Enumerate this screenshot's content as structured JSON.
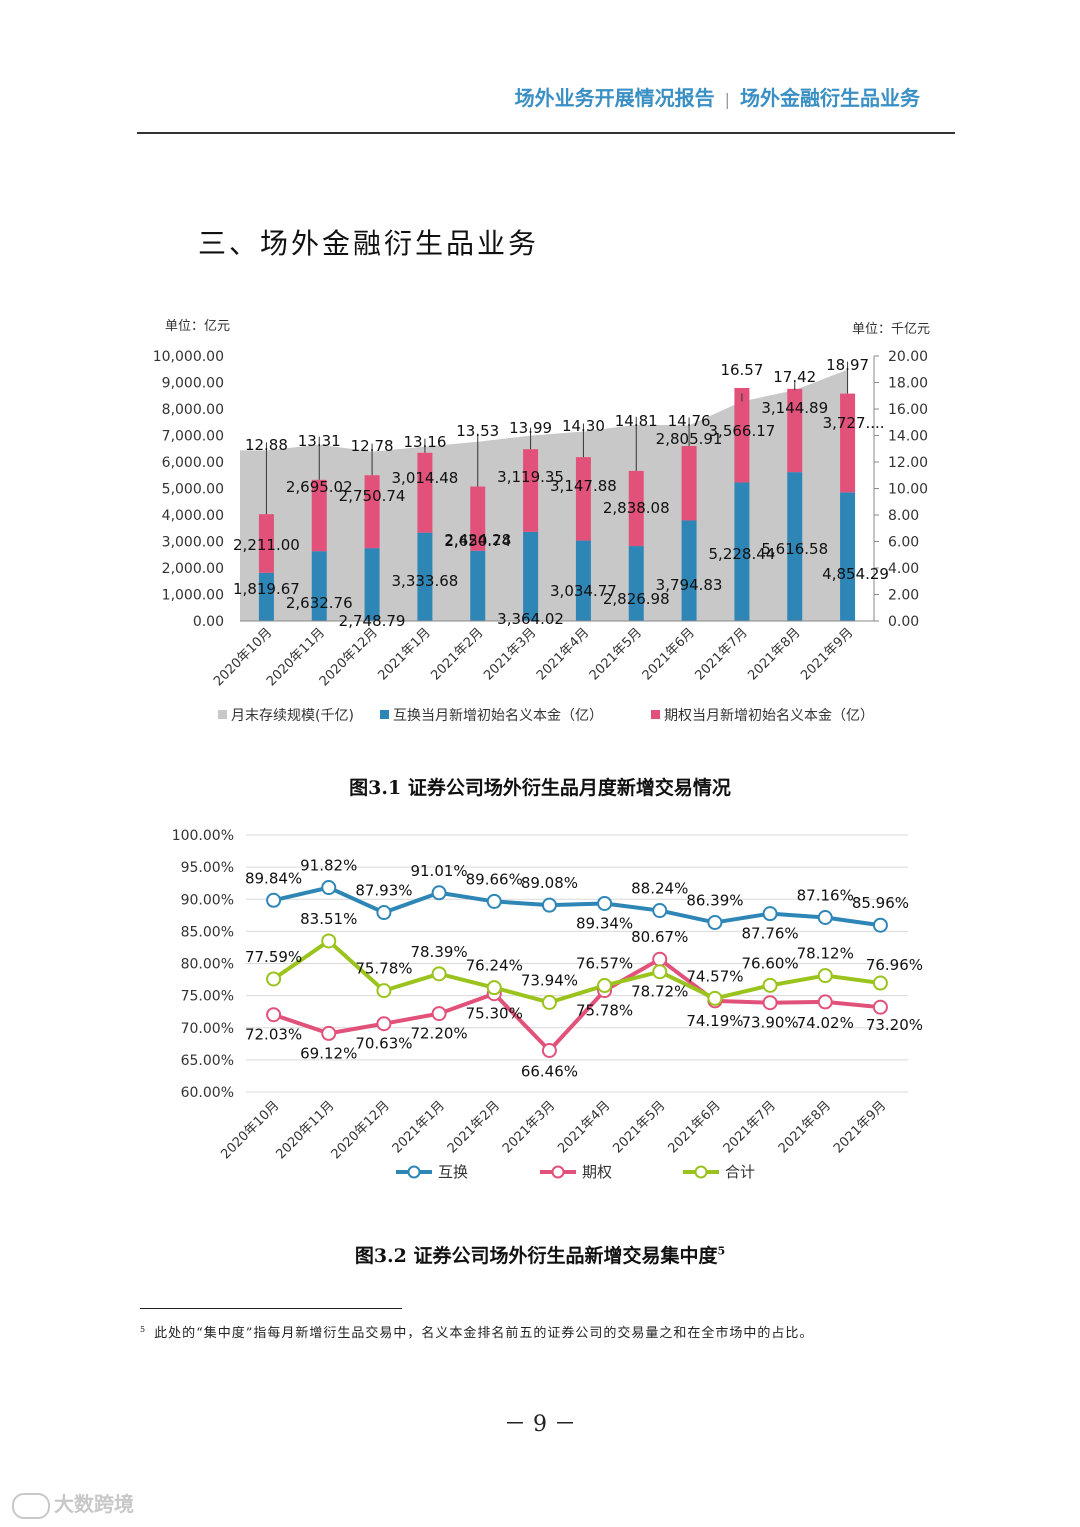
{
  "header": {
    "left": "场外业务开展情况报告",
    "separator": "|",
    "right": "场外金融衍生品业务"
  },
  "section_title": "三、场外金融衍生品业务",
  "figure1": {
    "caption": "图3.1 证券公司场外衍生品月度新增交易情况",
    "unit_left": "单位：亿元",
    "unit_right": "单位：千亿元",
    "left_ticks": [
      "0.00",
      "1,000.00",
      "2,000.00",
      "3,000.00",
      "4,000.00",
      "5,000.00",
      "6,000.00",
      "7,000.00",
      "8,000.00",
      "9,000.00",
      "10,000.00"
    ],
    "right_ticks": [
      "0.00",
      "2.00",
      "4.00",
      "6.00",
      "8.00",
      "10.00",
      "12.00",
      "14.00",
      "16.00",
      "18.00",
      "20.00"
    ],
    "legend": [
      "月末存续规模(千亿)",
      "互换当月新增初始名义本金（亿）",
      "期权当月新增初始名义本金（亿）"
    ],
    "colors": {
      "area": "#c8c8c8",
      "swap": "#2e86b6",
      "option": "#e2517a"
    }
  },
  "figure2": {
    "caption": "图3.2 证券公司场外衍生品新增交易集中度",
    "caption_sup": "5",
    "ticks": [
      "60.00%",
      "65.00%",
      "70.00%",
      "75.00%",
      "80.00%",
      "85.00%",
      "90.00%",
      "95.00%",
      "100.00%"
    ],
    "colors": {
      "swap": "#2e86b6",
      "option": "#e2517a",
      "total": "#9bc31d"
    }
  },
  "chart_data": [
    {
      "type": "bar",
      "categories": [
        "2020年10月",
        "2020年11月",
        "2020年12月",
        "2021年1月",
        "2021年2月",
        "2021年3月",
        "2021年4月",
        "2021年5月",
        "2021年6月",
        "2021年7月",
        "2021年8月",
        "2021年9月"
      ],
      "series": [
        {
          "name": "互换当月新增初始名义本金（亿）",
          "axis": "left",
          "values": [
            1819.67,
            2632.76,
            2748.79,
            3333.68,
            2650.74,
            3364.02,
            3034.77,
            2826.98,
            3794.83,
            5228.44,
            5616.58,
            4854.29
          ],
          "labels": [
            "1,819.67",
            "2,632.76",
            "2,748.79",
            "3,333.68",
            "2,650.74",
            "3,364.02",
            "3,034.77",
            "2,826.98",
            "3,794.83",
            "5,228.44",
            "5,616.58",
            "4,854.29"
          ]
        },
        {
          "name": "期权当月新增初始名义本金（亿）",
          "axis": "left",
          "values": [
            2211.0,
            2695.02,
            2750.74,
            3014.48,
            2424.28,
            3119.35,
            3147.88,
            2838.08,
            2805.91,
            3566.17,
            3144.89,
            3727
          ],
          "labels": [
            "2,211.00",
            "2,695.02",
            "2,750.74",
            "3,014.48",
            "2,424.28",
            "3,119.35",
            "3,147.88",
            "2,838.08",
            "2,805.91",
            "3,566.17",
            "3,144.89",
            "3,727...."
          ]
        },
        {
          "name": "月末存续规模(千亿)",
          "axis": "right",
          "type": "area",
          "values": [
            12.88,
            13.31,
            12.78,
            13.16,
            13.53,
            13.99,
            14.3,
            14.81,
            14.76,
            16.57,
            17.42,
            18.97
          ],
          "labels": [
            "12.88",
            "13.31",
            "12.78",
            "13.16",
            "13.53",
            "13.99",
            "14.30",
            "14.81",
            "14.76",
            "16.57",
            "17.42",
            "18.97"
          ]
        }
      ],
      "ylim": [
        0,
        10000
      ],
      "ylim_right": [
        0,
        20
      ]
    },
    {
      "type": "line",
      "categories": [
        "2020年10月",
        "2020年11月",
        "2020年12月",
        "2021年1月",
        "2021年2月",
        "2021年3月",
        "2021年4月",
        "2021年5月",
        "2021年6月",
        "2021年7月",
        "2021年8月",
        "2021年9月"
      ],
      "series": [
        {
          "name": "互换",
          "values": [
            89.84,
            91.82,
            87.93,
            91.01,
            89.66,
            89.08,
            89.34,
            88.24,
            86.39,
            87.76,
            87.16,
            85.96
          ],
          "labels": [
            "89.84%",
            "91.82%",
            "87.93%",
            "91.01%",
            "89.66%",
            "89.08%",
            "89.34%",
            "88.24%",
            "86.39%",
            "87.76%",
            "87.16%",
            "85.96%"
          ]
        },
        {
          "name": "期权",
          "values": [
            72.03,
            69.12,
            70.63,
            72.2,
            75.3,
            66.46,
            75.78,
            80.67,
            74.19,
            73.9,
            74.02,
            73.2
          ],
          "labels": [
            "72.03%",
            "69.12%",
            "70.63%",
            "72.20%",
            "75.30%",
            "66.46%",
            "75.78%",
            "80.67%",
            "74.19%",
            "73.90%",
            "74.02%",
            "73.20%"
          ]
        },
        {
          "name": "合计",
          "values": [
            77.59,
            83.51,
            75.78,
            78.39,
            76.24,
            73.94,
            76.57,
            78.72,
            74.57,
            76.6,
            78.12,
            76.96
          ],
          "labels": [
            "77.59%",
            "83.51%",
            "75.78%",
            "78.39%",
            "76.24%",
            "73.94%",
            "76.57%",
            "78.72%",
            "74.57%",
            "76.60%",
            "78.12%",
            "76.96%"
          ]
        }
      ],
      "ylim": [
        60,
        100
      ]
    }
  ],
  "footnote": {
    "mark": "5",
    "text": "此处的“集中度”指每月新增衍生品交易中，名义本金排名前五的证券公司的交易量之和在全市场中的占比。"
  },
  "page_number": "－ 9 －",
  "watermark": "大数跨境"
}
